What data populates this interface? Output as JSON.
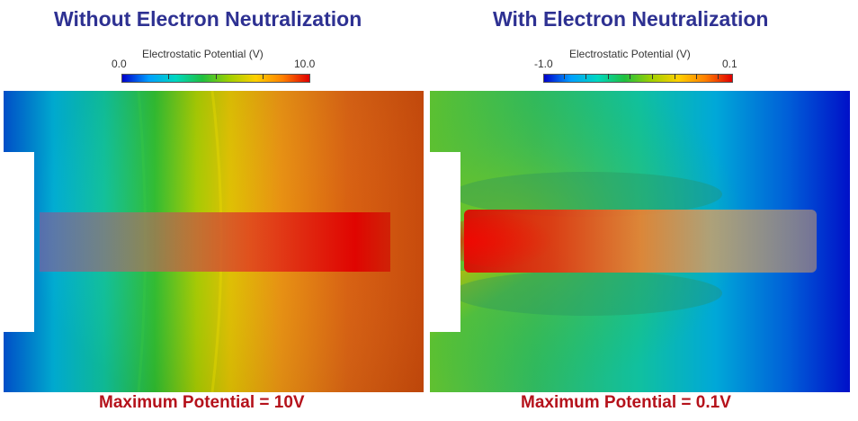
{
  "left": {
    "title": "Without Electron Neutralization",
    "colorbar": {
      "label": "Electrostatic Potential (V)",
      "min_label": "0.0",
      "max_label": "10.0"
    },
    "caption": "Maximum Potential  = 10V"
  },
  "right": {
    "title": "With Electron Neutralization",
    "colorbar": {
      "label": "Electrostatic Potential (V)",
      "min_label": "-1.0",
      "max_label": "0.1"
    },
    "caption": "Maximum Potential = 0.1V"
  },
  "colors": {
    "title": "#2e3192",
    "caption": "#b5121b",
    "scale": [
      "#0000cc",
      "#00a0ff",
      "#00d8c0",
      "#20c040",
      "#a0d000",
      "#ffd000",
      "#ff8000",
      "#e00000"
    ]
  }
}
